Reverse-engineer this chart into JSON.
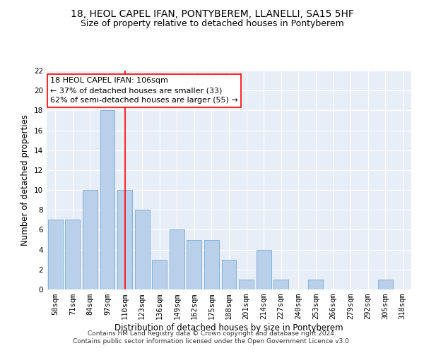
{
  "title1": "18, HEOL CAPEL IFAN, PONTYBEREM, LLANELLI, SA15 5HF",
  "title2": "Size of property relative to detached houses in Pontyberem",
  "xlabel": "Distribution of detached houses by size in Pontyberem",
  "ylabel": "Number of detached properties",
  "categories": [
    "58sqm",
    "71sqm",
    "84sqm",
    "97sqm",
    "110sqm",
    "123sqm",
    "136sqm",
    "149sqm",
    "162sqm",
    "175sqm",
    "188sqm",
    "201sqm",
    "214sqm",
    "227sqm",
    "240sqm",
    "253sqm",
    "266sqm",
    "279sqm",
    "292sqm",
    "305sqm",
    "318sqm"
  ],
  "values": [
    7,
    7,
    10,
    18,
    10,
    8,
    3,
    6,
    5,
    5,
    3,
    1,
    4,
    1,
    0,
    1,
    0,
    0,
    0,
    1,
    0
  ],
  "bar_color": "#b8d0ea",
  "bar_edge_color": "#7aabd4",
  "vline_x": 4,
  "vline_color": "red",
  "annotation_text": "18 HEOL CAPEL IFAN: 106sqm\n← 37% of detached houses are smaller (33)\n62% of semi-detached houses are larger (55) →",
  "annotation_box_color": "white",
  "annotation_box_edge": "red",
  "ylim": [
    0,
    22
  ],
  "yticks": [
    0,
    2,
    4,
    6,
    8,
    10,
    12,
    14,
    16,
    18,
    20,
    22
  ],
  "footer": "Contains HM Land Registry data © Crown copyright and database right 2024.\nContains public sector information licensed under the Open Government Licence v3.0.",
  "bg_color": "#e8eef8",
  "grid_color": "white",
  "title1_fontsize": 10,
  "title2_fontsize": 9,
  "xlabel_fontsize": 8.5,
  "ylabel_fontsize": 8.5,
  "tick_fontsize": 7.5,
  "annotation_fontsize": 8
}
